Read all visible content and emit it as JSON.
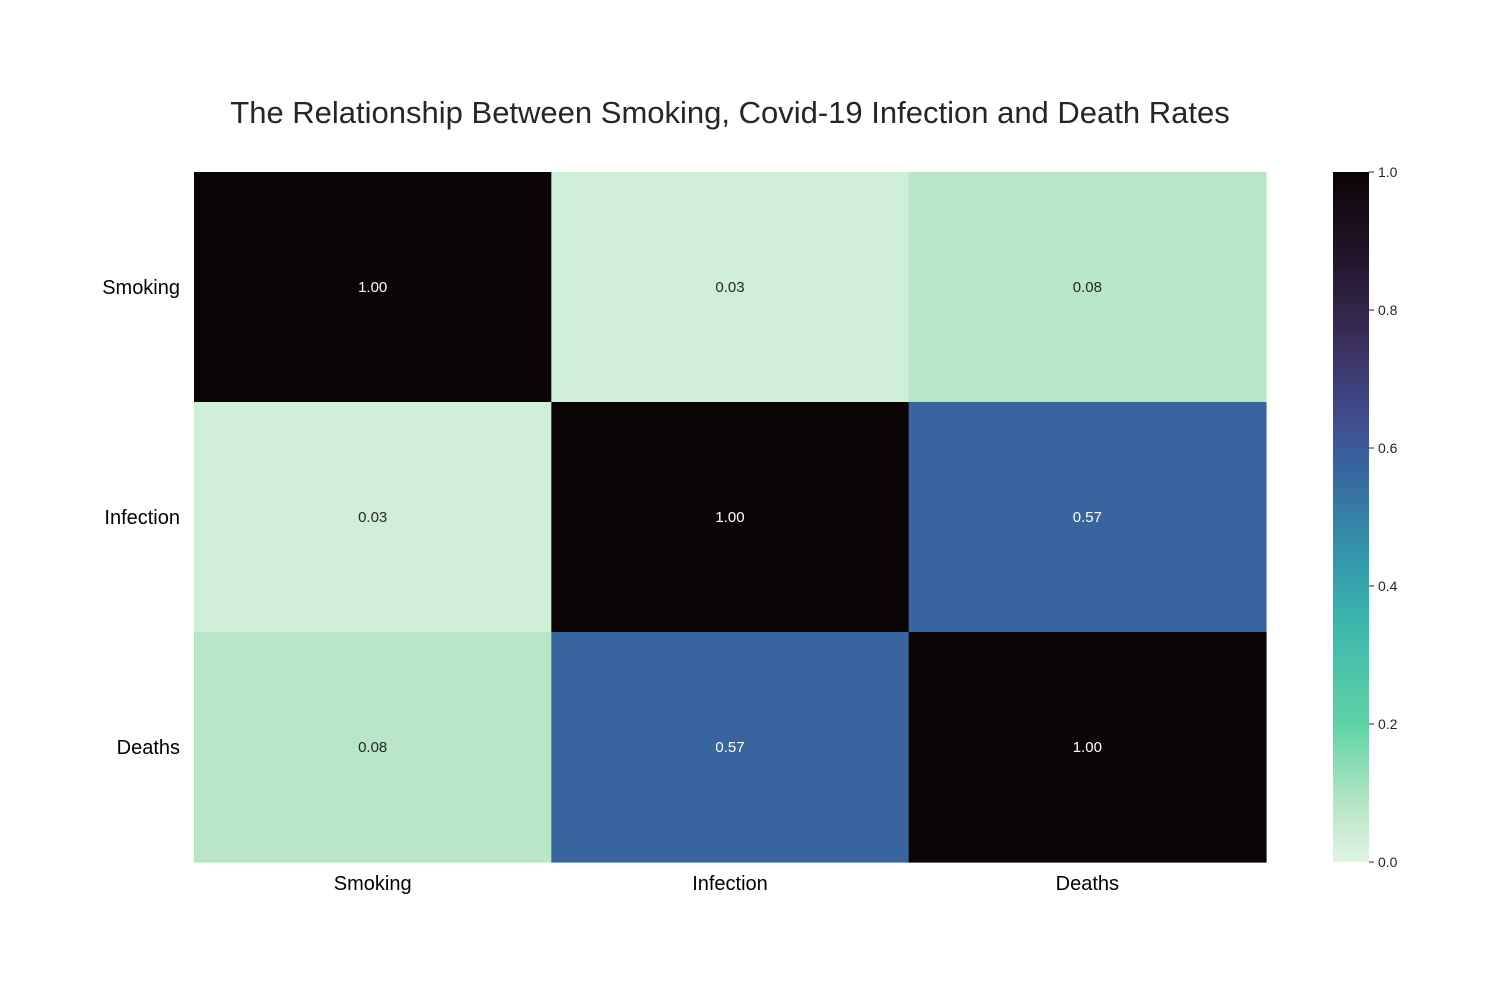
{
  "chart_data": {
    "type": "heatmap",
    "title": "The Relationship Between Smoking, Covid-19 Infection and Death Rates",
    "xlabel": "",
    "ylabel": "",
    "row_labels": [
      "Smoking",
      "Infection",
      "Deaths"
    ],
    "col_labels": [
      "Smoking",
      "Infection",
      "Deaths"
    ],
    "values": [
      [
        1.0,
        0.03,
        0.08
      ],
      [
        0.03,
        1.0,
        0.57
      ],
      [
        0.08,
        0.57,
        1.0
      ]
    ],
    "cell_labels": [
      [
        "1.00",
        "0.03",
        "0.08"
      ],
      [
        "0.03",
        "1.00",
        "0.57"
      ],
      [
        "0.08",
        "0.57",
        "1.00"
      ]
    ],
    "colorbar": {
      "min": 0.0,
      "max": 1.0,
      "ticks": [
        0.0,
        0.2,
        0.4,
        0.6,
        0.8,
        1.0
      ],
      "tick_labels": [
        "0.0",
        "0.2",
        "0.4",
        "0.6",
        "0.8",
        "1.0"
      ],
      "colormap": "mako_r",
      "color_stops": [
        {
          "v": 0.0,
          "c": "#def5e5"
        },
        {
          "v": 0.08,
          "c": "#b8e6c6"
        },
        {
          "v": 0.2,
          "c": "#5fd3a5"
        },
        {
          "v": 0.35,
          "c": "#3bb6ad"
        },
        {
          "v": 0.45,
          "c": "#3393ab"
        },
        {
          "v": 0.57,
          "c": "#38659e"
        },
        {
          "v": 0.65,
          "c": "#3e4a8c"
        },
        {
          "v": 0.75,
          "c": "#3b2f5e"
        },
        {
          "v": 0.88,
          "c": "#21152a"
        },
        {
          "v": 1.0,
          "c": "#0b0405"
        }
      ]
    }
  }
}
